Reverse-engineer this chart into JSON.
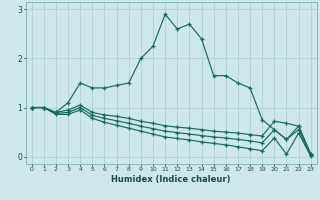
{
  "xlabel": "Humidex (Indice chaleur)",
  "bg_color": "#cce8e8",
  "grid_color": "#b0d0d0",
  "line_color": "#1a6a5a",
  "xlim": [
    -0.5,
    23.5
  ],
  "ylim": [
    -0.15,
    3.15
  ],
  "yticks": [
    0,
    1,
    2,
    3
  ],
  "xticks": [
    0,
    1,
    2,
    3,
    4,
    5,
    6,
    7,
    8,
    9,
    10,
    11,
    12,
    13,
    14,
    15,
    16,
    17,
    18,
    19,
    20,
    21,
    22,
    23
  ],
  "line1": [
    1.0,
    1.0,
    0.9,
    1.1,
    1.5,
    1.4,
    1.4,
    1.45,
    1.5,
    2.0,
    2.25,
    2.9,
    2.6,
    2.7,
    2.4,
    1.65,
    1.65,
    1.5,
    1.4,
    0.75,
    0.55,
    0.35,
    0.62,
    0.05
  ],
  "line2": [
    1.0,
    1.0,
    0.9,
    0.95,
    1.05,
    0.9,
    0.85,
    0.82,
    0.78,
    0.72,
    0.68,
    0.63,
    0.6,
    0.58,
    0.55,
    0.52,
    0.5,
    0.48,
    0.45,
    0.42,
    0.72,
    0.68,
    0.62,
    0.05
  ],
  "line3": [
    1.0,
    1.0,
    0.88,
    0.9,
    1.0,
    0.84,
    0.78,
    0.73,
    0.68,
    0.62,
    0.57,
    0.52,
    0.49,
    0.46,
    0.43,
    0.4,
    0.38,
    0.35,
    0.32,
    0.28,
    0.55,
    0.35,
    0.55,
    0.03
  ],
  "line4": [
    1.0,
    1.0,
    0.86,
    0.86,
    0.95,
    0.78,
    0.7,
    0.64,
    0.58,
    0.52,
    0.46,
    0.4,
    0.37,
    0.34,
    0.3,
    0.27,
    0.24,
    0.2,
    0.16,
    0.12,
    0.38,
    0.05,
    0.48,
    0.01
  ]
}
